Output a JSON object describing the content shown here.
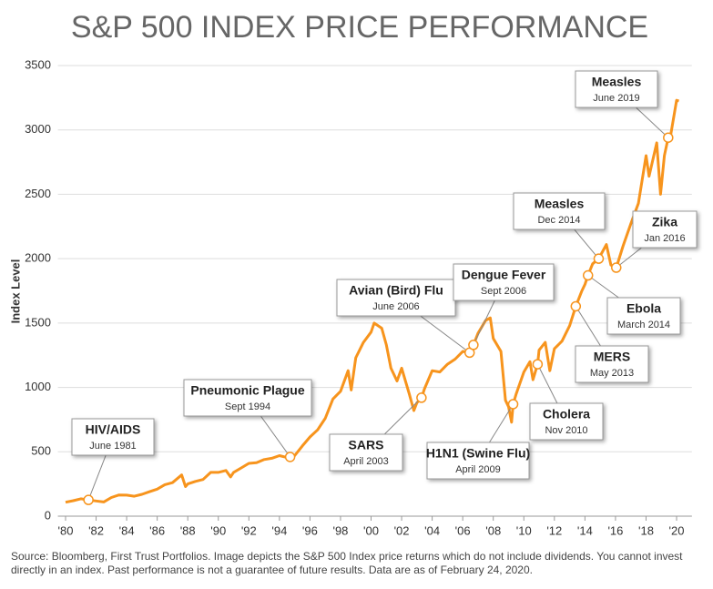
{
  "chart_data": {
    "type": "line",
    "title": "S&P 500 INDEX PRICE PERFORMANCE",
    "y_label": "Index Level",
    "note": "Source: Bloomberg, First Trust Portfolios. Image depicts the S&P 500 Index price returns which do not include dividends. You cannot invest directly in an index. Past performance is not a guarantee of future results. Data are as of February 24, 2020.",
    "xlim": [
      1979.5,
      2021
    ],
    "ylim": [
      0,
      3500
    ],
    "yticks": [
      0,
      500,
      1000,
      1500,
      2000,
      2500,
      3000,
      3500
    ],
    "xticks": [
      {
        "value": 1980,
        "label": "'80"
      },
      {
        "value": 1982,
        "label": "'82"
      },
      {
        "value": 1984,
        "label": "'84"
      },
      {
        "value": 1986,
        "label": "'86"
      },
      {
        "value": 1988,
        "label": "'88"
      },
      {
        "value": 1990,
        "label": "'90"
      },
      {
        "value": 1992,
        "label": "'92"
      },
      {
        "value": 1994,
        "label": "'94"
      },
      {
        "value": 1996,
        "label": "'96"
      },
      {
        "value": 1998,
        "label": "'98"
      },
      {
        "value": 2000,
        "label": "'00"
      },
      {
        "value": 2002,
        "label": "'02"
      },
      {
        "value": 2004,
        "label": "'04"
      },
      {
        "value": 2006,
        "label": "'06"
      },
      {
        "value": 2008,
        "label": "'08"
      },
      {
        "value": 2010,
        "label": "'10"
      },
      {
        "value": 2012,
        "label": "'12"
      },
      {
        "value": 2014,
        "label": "'14"
      },
      {
        "value": 2016,
        "label": "'16"
      },
      {
        "value": 2018,
        "label": "'18"
      },
      {
        "value": 2020,
        "label": "'20"
      }
    ],
    "grid": true,
    "color": "#f7941d",
    "x": [
      1980,
      1980.5,
      1981,
      1981.5,
      1982,
      1982.5,
      1983,
      1983.5,
      1984,
      1984.5,
      1985,
      1985.5,
      1986,
      1986.5,
      1987,
      1987.6,
      1987.85,
      1988,
      1988.5,
      1989,
      1989.5,
      1990,
      1990.5,
      1990.8,
      1991,
      1991.5,
      1992,
      1992.5,
      1993,
      1993.5,
      1994,
      1994.5,
      1994.7,
      1995,
      1995.5,
      1996,
      1996.5,
      1997,
      1997.5,
      1998,
      1998.5,
      1998.7,
      1999,
      1999.5,
      2000,
      2000.2,
      2000.7,
      2001,
      2001.3,
      2001.7,
      2002,
      2002.5,
      2002.8,
      2003,
      2003.3,
      2003.5,
      2004,
      2004.5,
      2005,
      2005.5,
      2006,
      2006.45,
      2006.7,
      2007,
      2007.5,
      2007.8,
      2008,
      2008.5,
      2008.8,
      2009,
      2009.2,
      2009.3,
      2009.5,
      2010,
      2010.4,
      2010.6,
      2010.9,
      2011,
      2011.4,
      2011.7,
      2012,
      2012.5,
      2013,
      2013.4,
      2013.8,
      2014,
      2014.2,
      2014.5,
      2014.9,
      2015.4,
      2015.7,
      2016.05,
      2016.5,
      2017,
      2017.5,
      2018,
      2018.2,
      2018.7,
      2018.95,
      2019.2,
      2019.45,
      2019.6,
      2020,
      2020.15
    ],
    "values": [
      108,
      120,
      135,
      126,
      118,
      110,
      145,
      165,
      163,
      155,
      170,
      190,
      210,
      245,
      260,
      320,
      230,
      250,
      270,
      285,
      340,
      340,
      355,
      305,
      340,
      375,
      410,
      415,
      440,
      450,
      470,
      455,
      460,
      470,
      545,
      615,
      670,
      760,
      910,
      970,
      1130,
      980,
      1230,
      1350,
      1430,
      1500,
      1460,
      1330,
      1150,
      1050,
      1150,
      950,
      820,
      880,
      920,
      990,
      1130,
      1120,
      1180,
      1220,
      1280,
      1270,
      1330,
      1420,
      1520,
      1540,
      1380,
      1280,
      900,
      850,
      730,
      870,
      950,
      1120,
      1200,
      1060,
      1180,
      1290,
      1350,
      1130,
      1300,
      1360,
      1480,
      1630,
      1750,
      1800,
      1870,
      1960,
      2000,
      2110,
      1950,
      1930,
      2100,
      2270,
      2430,
      2800,
      2640,
      2900,
      2500,
      2800,
      2940,
      2950,
      3230,
      3225
    ],
    "annotations": [
      {
        "title": "HIV/AIDS",
        "date": "June 1981",
        "x": 1981.5,
        "y": 126
      },
      {
        "title": "Pneumonic Plague",
        "date": "Sept 1994",
        "x": 1994.7,
        "y": 460
      },
      {
        "title": "SARS",
        "date": "April 2003",
        "x": 2003.3,
        "y": 920
      },
      {
        "title": "Avian (Bird) Flu",
        "date": "June 2006",
        "x": 2006.45,
        "y": 1270
      },
      {
        "title": "Dengue Fever",
        "date": "Sept 2006",
        "x": 2006.7,
        "y": 1330
      },
      {
        "title": "H1N1 (Swine Flu)",
        "date": "April 2009",
        "x": 2009.3,
        "y": 870
      },
      {
        "title": "Cholera",
        "date": "Nov 2010",
        "x": 2010.9,
        "y": 1180
      },
      {
        "title": "MERS",
        "date": "May 2013",
        "x": 2013.4,
        "y": 1630
      },
      {
        "title": "Ebola",
        "date": "March 2014",
        "x": 2014.2,
        "y": 1870
      },
      {
        "title": "Measles",
        "date": "Dec 2014",
        "x": 2014.9,
        "y": 2000
      },
      {
        "title": "Zika",
        "date": "Jan 2016",
        "x": 2016.05,
        "y": 1930
      },
      {
        "title": "Measles",
        "date": "June 2019",
        "x": 2019.45,
        "y": 2940
      }
    ]
  }
}
